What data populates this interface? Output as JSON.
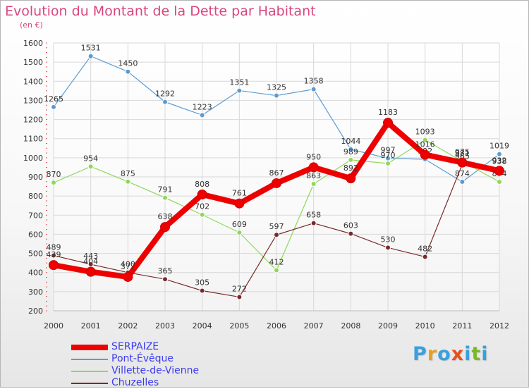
{
  "header": {
    "title": "Evolution du Montant de la Dette par Habitant",
    "subtitle": "(en €)"
  },
  "brand": {
    "letters": [
      "P",
      "r",
      "o",
      "x",
      "i",
      "t",
      "i"
    ],
    "colors": [
      "#3aa0dd",
      "#e8a020",
      "#3aa0dd",
      "#e8501c",
      "#3aa0dd",
      "#7ab828",
      "#3aa0dd"
    ]
  },
  "chart_data": {
    "type": "line",
    "title": "Evolution du Montant de la Dette par Habitant",
    "ylabel": "(en €)",
    "xlabel": "",
    "x": [
      "2000",
      "2001",
      "2002",
      "2003",
      "2004",
      "2005",
      "2006",
      "2007",
      "2008",
      "2009",
      "2010",
      "2011",
      "2012"
    ],
    "ylim": [
      200,
      1600
    ],
    "yticks": [
      200,
      300,
      400,
      500,
      600,
      700,
      800,
      900,
      1000,
      1100,
      1200,
      1300,
      1400,
      1500,
      1600
    ],
    "grid": true,
    "legend": "bottom-left",
    "series": [
      {
        "name": "Pont-Évêque",
        "color": "#5c9bd1",
        "values": [
          1265,
          1531,
          1450,
          1292,
          1223,
          1351,
          1325,
          1358,
          1044,
          997,
          992,
          874,
          1019
        ],
        "labels": [
          "1265",
          "1531",
          "1450",
          "1292",
          "1223",
          "1351",
          "1325",
          "1358",
          "1044",
          "997",
          "992",
          "874",
          "1019"
        ]
      },
      {
        "name": "Villette-de-Vienne",
        "color": "#8ed85a",
        "values": [
          870,
          954,
          875,
          791,
          702,
          609,
          412,
          863,
          989,
          970,
          1093,
          981,
          874
        ],
        "labels": [
          "870",
          "954",
          "875",
          "791",
          "702",
          "609",
          "412",
          "863",
          "989",
          "970",
          "1093",
          "981",
          "874"
        ]
      },
      {
        "name": "Chuzelles",
        "color": "#7a2a2a",
        "values": [
          489,
          443,
          400,
          365,
          305,
          272,
          597,
          658,
          603,
          530,
          482,
          965,
          938
        ],
        "labels": [
          "489",
          "443",
          "400",
          "365",
          "305",
          "272",
          "597",
          "658",
          "603",
          "530",
          "482",
          "965",
          "938"
        ]
      },
      {
        "name": "SERPAIZE",
        "color": "#ee0000",
        "values": [
          439,
          404,
          377,
          638,
          808,
          761,
          867,
          950,
          892,
          1183,
          1016,
          975,
          932
        ],
        "labels": [
          "439",
          "404",
          "377",
          "638",
          "808",
          "761",
          "867",
          "950",
          "892",
          "1183",
          "1016",
          "975",
          "932"
        ]
      }
    ],
    "legend_order": [
      "SERPAIZE",
      "Pont-Évêque",
      "Villette-de-Vienne",
      "Chuzelles"
    ]
  }
}
